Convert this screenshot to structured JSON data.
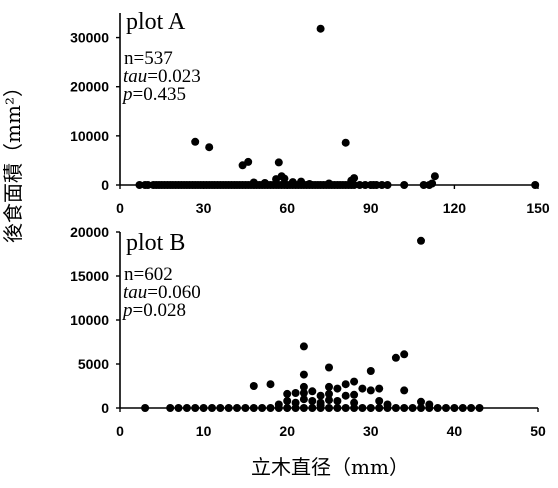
{
  "chart_data": [
    {
      "type": "scatter",
      "title": "plot A",
      "annotations": {
        "n_label": "n=537",
        "tau_name": "tau",
        "tau_value": "=0.023",
        "p_name": "p",
        "p_value": "=0.435"
      },
      "xlim": [
        0,
        150
      ],
      "ylim": [
        0,
        35000
      ],
      "xticks": [
        "0",
        "30",
        "60",
        "90",
        "120",
        "150"
      ],
      "yticks": [
        "0",
        "10000",
        "20000",
        "30000"
      ],
      "grid": false,
      "points": [
        [
          7,
          0
        ],
        [
          9,
          0
        ],
        [
          10,
          0
        ],
        [
          12,
          0
        ],
        [
          13,
          0
        ],
        [
          14,
          0
        ],
        [
          15,
          0
        ],
        [
          16,
          0
        ],
        [
          17,
          0
        ],
        [
          18,
          0
        ],
        [
          19,
          0
        ],
        [
          20,
          0
        ],
        [
          21,
          0
        ],
        [
          22,
          0
        ],
        [
          23,
          0
        ],
        [
          24,
          0
        ],
        [
          25,
          0
        ],
        [
          26,
          0
        ],
        [
          27,
          0
        ],
        [
          28,
          0
        ],
        [
          29,
          0
        ],
        [
          30,
          0
        ],
        [
          31,
          0
        ],
        [
          32,
          0
        ],
        [
          33,
          0
        ],
        [
          34,
          0
        ],
        [
          35,
          0
        ],
        [
          36,
          0
        ],
        [
          37,
          0
        ],
        [
          38,
          0
        ],
        [
          39,
          0
        ],
        [
          40,
          0
        ],
        [
          41,
          0
        ],
        [
          42,
          0
        ],
        [
          43,
          0
        ],
        [
          44,
          0
        ],
        [
          45,
          0
        ],
        [
          46,
          0
        ],
        [
          47,
          0
        ],
        [
          48,
          0
        ],
        [
          49,
          0
        ],
        [
          50,
          0
        ],
        [
          51,
          0
        ],
        [
          52,
          0
        ],
        [
          53,
          0
        ],
        [
          54,
          0
        ],
        [
          55,
          0
        ],
        [
          56,
          0
        ],
        [
          57,
          0
        ],
        [
          58,
          0
        ],
        [
          59,
          0
        ],
        [
          60,
          0
        ],
        [
          61,
          0
        ],
        [
          62,
          0
        ],
        [
          63,
          0
        ],
        [
          64,
          0
        ],
        [
          65,
          0
        ],
        [
          66,
          0
        ],
        [
          67,
          0
        ],
        [
          68,
          0
        ],
        [
          69,
          0
        ],
        [
          70,
          0
        ],
        [
          71,
          0
        ],
        [
          72,
          0
        ],
        [
          73,
          0
        ],
        [
          74,
          0
        ],
        [
          75,
          0
        ],
        [
          76,
          0
        ],
        [
          77,
          0
        ],
        [
          78,
          0
        ],
        [
          79,
          0
        ],
        [
          80,
          0
        ],
        [
          81,
          0
        ],
        [
          82,
          0
        ],
        [
          83,
          0
        ],
        [
          84,
          0
        ],
        [
          86,
          0
        ],
        [
          88,
          0
        ],
        [
          90,
          0
        ],
        [
          91,
          0
        ],
        [
          92,
          0
        ],
        [
          94,
          0
        ],
        [
          96,
          0
        ],
        [
          102,
          0
        ],
        [
          109,
          0
        ],
        [
          111,
          0
        ],
        [
          149,
          0
        ],
        [
          27,
          8800
        ],
        [
          32,
          7700
        ],
        [
          44,
          4000
        ],
        [
          46,
          4700
        ],
        [
          57,
          4600
        ],
        [
          58,
          1800
        ],
        [
          59,
          1300
        ],
        [
          56,
          1200
        ],
        [
          62,
          600
        ],
        [
          65,
          700
        ],
        [
          72,
          31800
        ],
        [
          81,
          8600
        ],
        [
          84,
          1400
        ],
        [
          83,
          900
        ],
        [
          113,
          1800
        ],
        [
          112,
          300
        ],
        [
          48,
          500
        ],
        [
          52,
          400
        ],
        [
          75,
          300
        ],
        [
          68,
          200
        ]
      ]
    },
    {
      "type": "scatter",
      "title": "plot B",
      "annotations": {
        "n_label": "n=602",
        "tau_name": "tau",
        "tau_value": "=0.060",
        "p_name": "p",
        "p_value": "=0.028"
      },
      "xlim": [
        0,
        50
      ],
      "ylim": [
        0,
        20000
      ],
      "xticks": [
        "0",
        "10",
        "20",
        "30",
        "40",
        "50"
      ],
      "yticks": [
        "0",
        "5000",
        "10000",
        "15000",
        "20000"
      ],
      "xlabel": "立木直径（mm）",
      "grid": false,
      "points": [
        [
          3,
          0
        ],
        [
          6,
          0
        ],
        [
          7,
          0
        ],
        [
          8,
          0
        ],
        [
          9,
          0
        ],
        [
          10,
          0
        ],
        [
          11,
          0
        ],
        [
          12,
          0
        ],
        [
          13,
          0
        ],
        [
          14,
          0
        ],
        [
          15,
          0
        ],
        [
          16,
          0
        ],
        [
          17,
          0
        ],
        [
          18,
          0
        ],
        [
          19,
          0
        ],
        [
          20,
          0
        ],
        [
          21,
          0
        ],
        [
          22,
          0
        ],
        [
          23,
          0
        ],
        [
          24,
          0
        ],
        [
          25,
          0
        ],
        [
          26,
          0
        ],
        [
          27,
          0
        ],
        [
          28,
          0
        ],
        [
          29,
          0
        ],
        [
          30,
          0
        ],
        [
          31,
          0
        ],
        [
          32,
          0
        ],
        [
          33,
          0
        ],
        [
          34,
          0
        ],
        [
          35,
          0
        ],
        [
          36,
          0
        ],
        [
          37,
          0
        ],
        [
          38,
          0
        ],
        [
          39,
          0
        ],
        [
          40,
          0
        ],
        [
          41,
          0
        ],
        [
          42,
          0
        ],
        [
          43,
          0
        ],
        [
          16,
          2500
        ],
        [
          18,
          2700
        ],
        [
          20,
          1600
        ],
        [
          20,
          800
        ],
        [
          21,
          1700
        ],
        [
          21,
          600
        ],
        [
          22,
          7000
        ],
        [
          22,
          3800
        ],
        [
          22,
          2400
        ],
        [
          22,
          1700
        ],
        [
          22,
          1000
        ],
        [
          23,
          1900
        ],
        [
          23,
          800
        ],
        [
          24,
          1400
        ],
        [
          24,
          600
        ],
        [
          25,
          4600
        ],
        [
          25,
          2400
        ],
        [
          25,
          1600
        ],
        [
          25,
          900
        ],
        [
          26,
          2200
        ],
        [
          26,
          800
        ],
        [
          27,
          2700
        ],
        [
          27,
          1400
        ],
        [
          28,
          3000
        ],
        [
          28,
          1500
        ],
        [
          28,
          600
        ],
        [
          29,
          2200
        ],
        [
          30,
          4200
        ],
        [
          30,
          2000
        ],
        [
          31,
          2200
        ],
        [
          31,
          800
        ],
        [
          33,
          5700
        ],
        [
          34,
          6100
        ],
        [
          34,
          2000
        ],
        [
          36,
          19000
        ],
        [
          36,
          700
        ],
        [
          37,
          400
        ],
        [
          19,
          400
        ],
        [
          24,
          300
        ],
        [
          32,
          400
        ]
      ]
    }
  ],
  "ylabel": "後食面積（mm²）"
}
